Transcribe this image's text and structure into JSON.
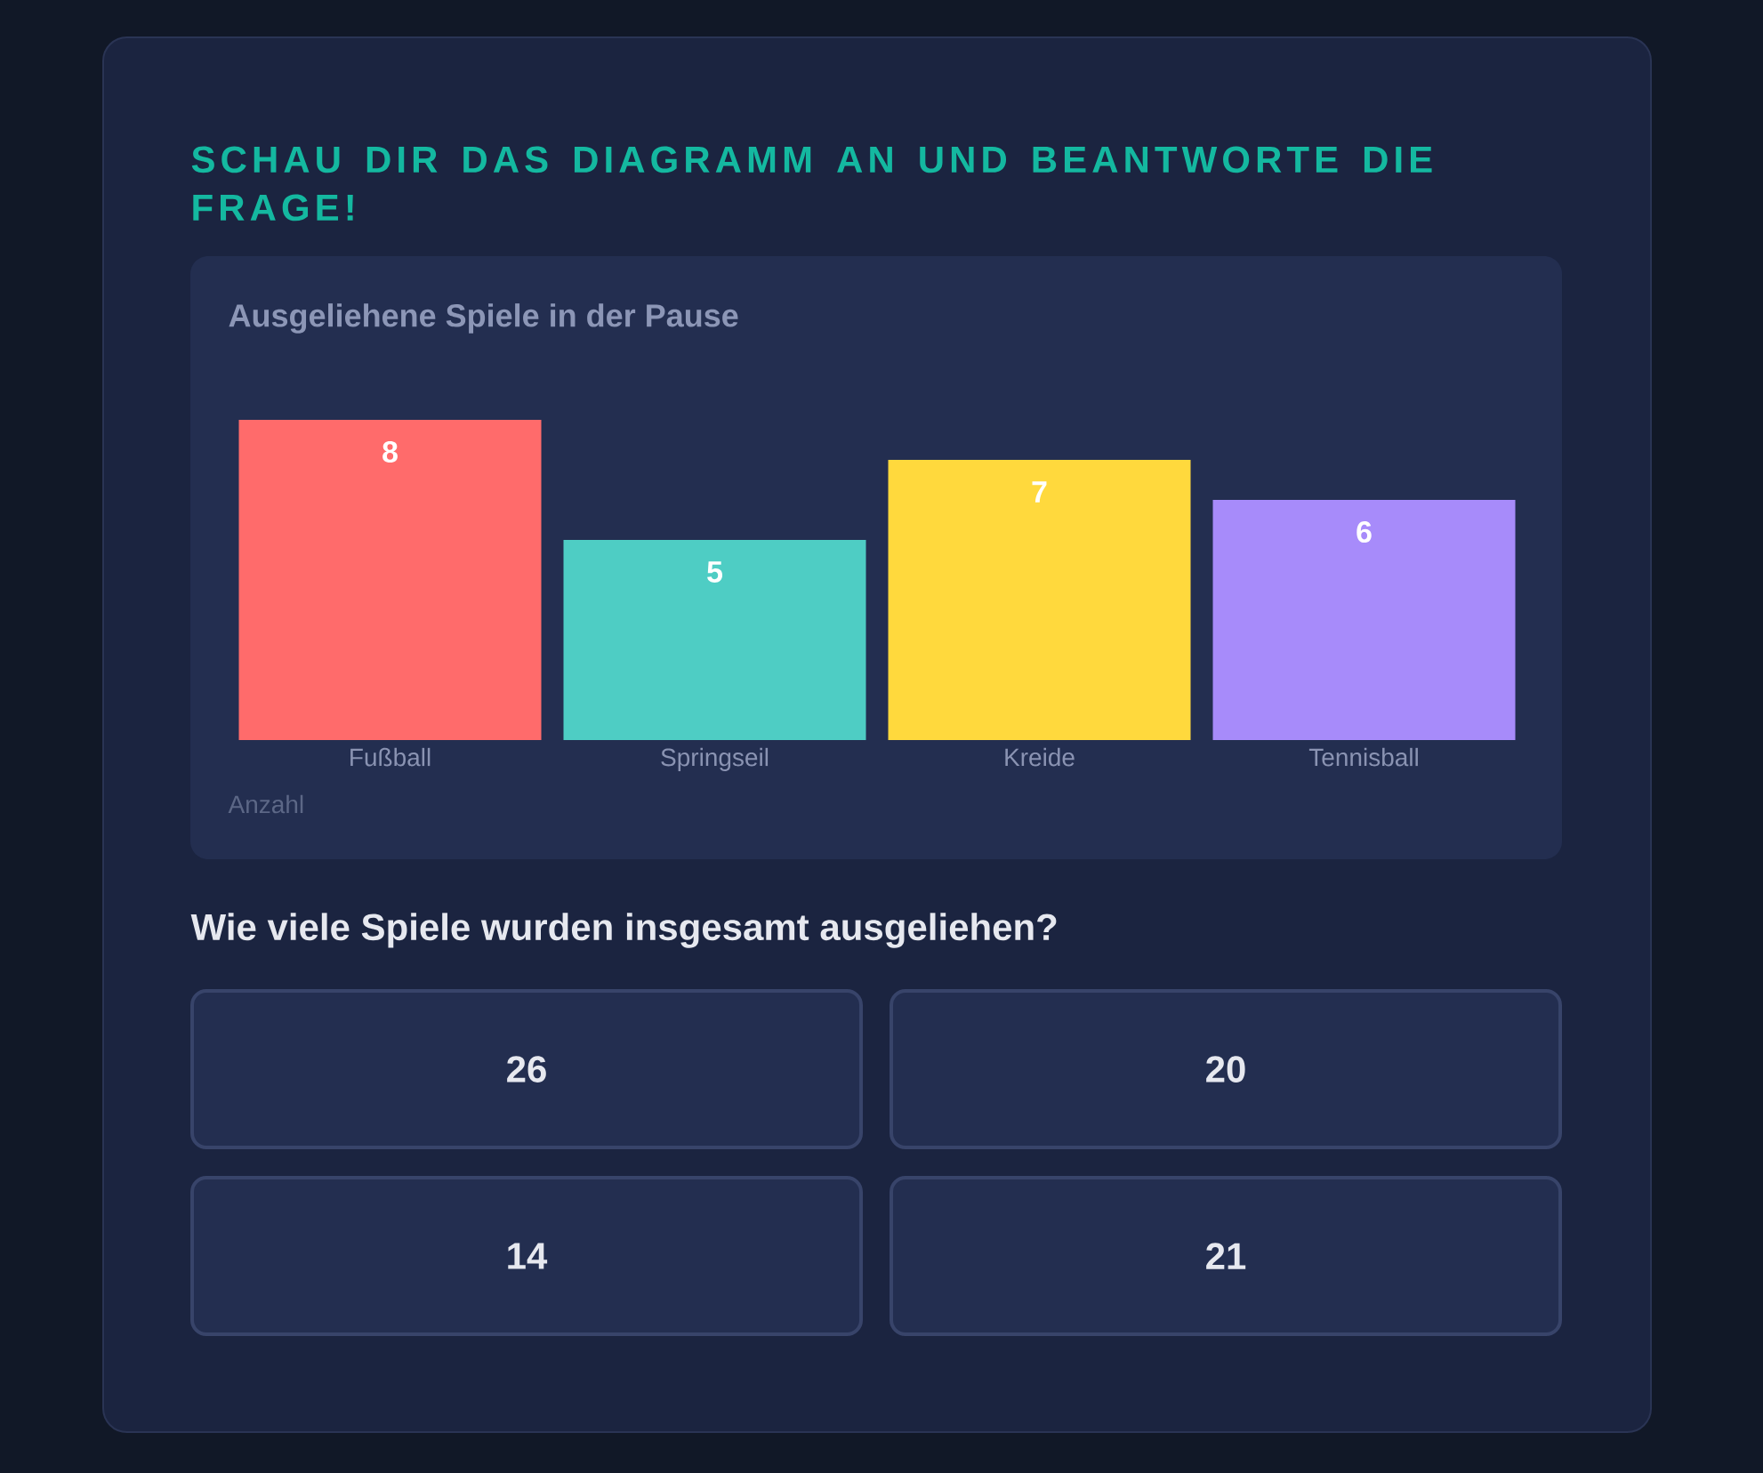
{
  "chart_data": {
    "type": "bar",
    "title": "Ausgeliehene Spiele in der Pause",
    "categories": [
      "Fußball",
      "Springseil",
      "Kreide",
      "Tennisball"
    ],
    "values": [
      8,
      5,
      7,
      6
    ],
    "colors": [
      "#ff6b6b",
      "#4ecdc4",
      "#ffd93d",
      "#a78bfa"
    ],
    "data_labels": true,
    "tick_labels": "x",
    "annotations": [
      "SCHAU DIR DAS DIAGRAMM AN UND BEANTWORTE DIE FRAGE!",
      "Anzahl",
      "Wie viele Spiele wurden insgesamt ausgeliehen?",
      "26",
      "20",
      "14",
      "21"
    ]
  }
}
